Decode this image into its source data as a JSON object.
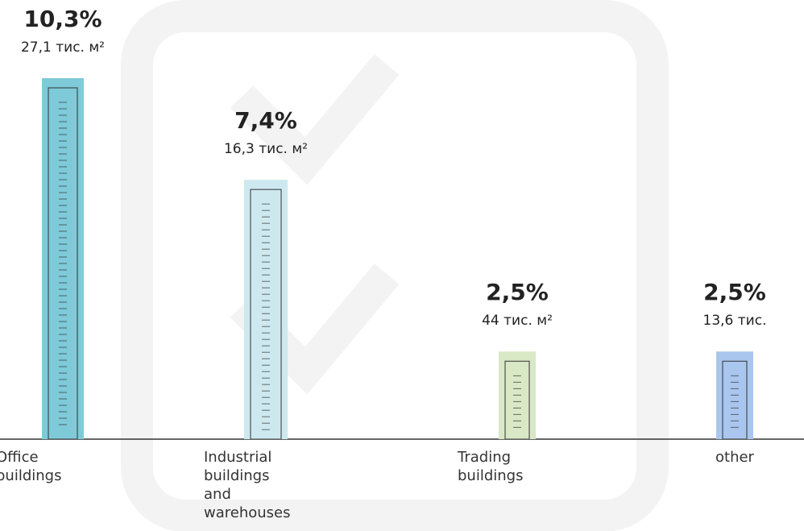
{
  "chart_data": {
    "type": "bar",
    "categories": [
      "Office buildings",
      "Industrial buildings and warehouses",
      "Trading buildings",
      "other"
    ],
    "values": [
      10.3,
      7.4,
      2.5,
      2.5
    ],
    "value_labels": [
      "10,3%",
      "7,4%",
      "2,5%",
      "2,5%"
    ],
    "area_labels": [
      "27,1 тис. м²",
      "16,3 тис. м²",
      "44 тис. м²",
      "13,6 тис."
    ],
    "colors": [
      "#7ecad9",
      "#cde9ef",
      "#d9e8c5",
      "#a9c6ee"
    ]
  }
}
